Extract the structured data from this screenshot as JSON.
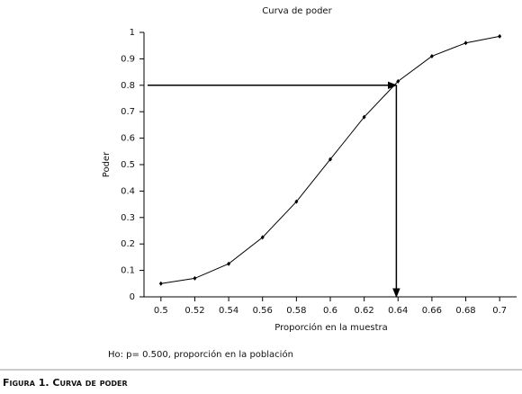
{
  "chart_data": {
    "type": "line",
    "title": "Curva de poder",
    "x_label": "Proporción en la muestra",
    "y_label": "Poder",
    "note": "Ho: p= 0.500, proporción en la población",
    "caption": "Figura 1. Curva de poder",
    "x": [
      0.5,
      0.52,
      0.54,
      0.56,
      0.58,
      0.6,
      0.62,
      0.64,
      0.66,
      0.68,
      0.7
    ],
    "series": [
      {
        "name": "Poder",
        "color": "#000000",
        "values": [
          0.05,
          0.07,
          0.125,
          0.225,
          0.36,
          0.52,
          0.68,
          0.815,
          0.91,
          0.96,
          0.985
        ]
      }
    ],
    "xlim": [
      0.49,
      0.71
    ],
    "xticks": [
      0.5,
      0.52,
      0.54,
      0.56,
      0.58,
      0.6,
      0.62,
      0.64,
      0.66,
      0.68,
      0.7
    ],
    "ylim": [
      0,
      1
    ],
    "yticks": [
      0,
      0.1,
      0.2,
      0.3,
      0.4,
      0.5,
      0.6,
      0.7,
      0.8,
      0.9,
      1
    ],
    "reference": {
      "x": 0.639,
      "y": 0.8
    }
  }
}
